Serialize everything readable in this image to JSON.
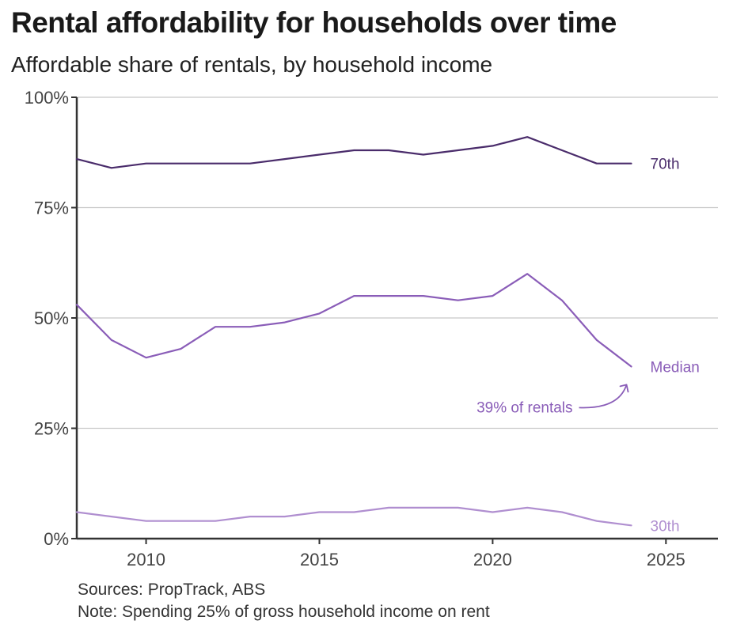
{
  "title": "Rental affordability for households over time",
  "subtitle": "Affordable share of rentals, by household income",
  "sources": "Sources: PropTrack, ABS",
  "note": "Note: Spending 25% of gross household income on rent",
  "chart_data": {
    "type": "line",
    "title": "Rental affordability for households over time",
    "subtitle": "Affordable share of rentals, by household income",
    "xlabel": "",
    "ylabel": "",
    "xlim": [
      2008,
      2026.5
    ],
    "ylim": [
      0,
      100
    ],
    "x_ticks": [
      2010,
      2015,
      2020,
      2025
    ],
    "y_ticks": [
      0,
      25,
      50,
      75,
      100
    ],
    "y_tick_labels": [
      "0%",
      "25%",
      "50%",
      "75%",
      "100%"
    ],
    "grid": "horizontal",
    "legend": "none (direct labels at line ends)",
    "x": [
      2008,
      2009,
      2010,
      2011,
      2012,
      2013,
      2014,
      2015,
      2016,
      2017,
      2018,
      2019,
      2020,
      2021,
      2022,
      2023,
      2024
    ],
    "series": [
      {
        "name": "70th",
        "color": "#4a2c6b",
        "values": [
          86,
          84,
          85,
          85,
          85,
          85,
          86,
          87,
          88,
          88,
          87,
          88,
          89,
          91,
          88,
          85,
          85
        ]
      },
      {
        "name": "Median",
        "color": "#8a5db8",
        "values": [
          53,
          45,
          41,
          43,
          48,
          48,
          49,
          51,
          55,
          55,
          55,
          54,
          55,
          60,
          54,
          45,
          39
        ]
      },
      {
        "name": "30th",
        "color": "#b08fd0",
        "values": [
          6,
          5,
          4,
          4,
          4,
          5,
          5,
          6,
          6,
          7,
          7,
          7,
          6,
          7,
          6,
          4,
          3
        ]
      }
    ],
    "annotations": [
      {
        "text": "39% of rentals",
        "x": 2024,
        "y": 39,
        "color": "#8a5db8"
      }
    ]
  }
}
